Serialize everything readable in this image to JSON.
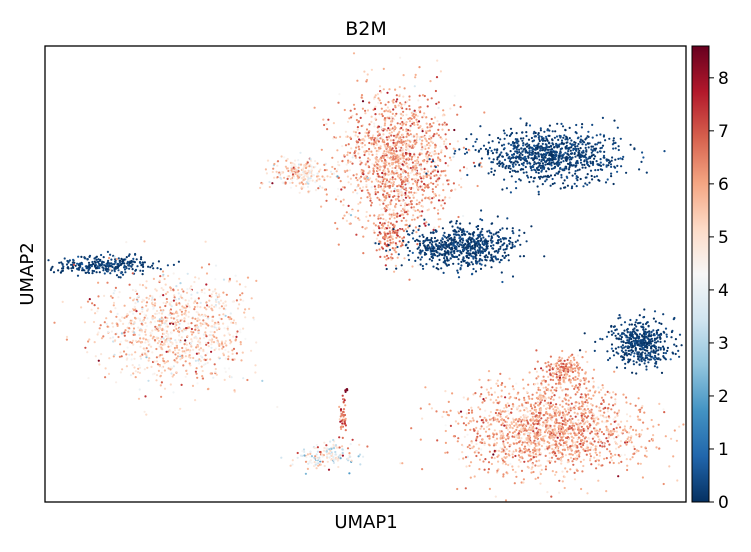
{
  "chart_data": {
    "type": "scatter",
    "title": "B2M",
    "xlabel": "UMAP1",
    "ylabel": "UMAP2",
    "xlim": [
      0,
      100
    ],
    "ylim": [
      0,
      100
    ],
    "colormap": "RdBu_r",
    "colormap_stops": [
      "#053061",
      "#2166ac",
      "#4393c3",
      "#92c5de",
      "#d1e5f0",
      "#f7f7f7",
      "#fddbc7",
      "#f4a582",
      "#d6604d",
      "#b2182b",
      "#67001f"
    ],
    "colorbar": {
      "min": 0,
      "max": 8.6,
      "ticks": [
        {
          "value": 0,
          "label": "0"
        },
        {
          "value": 1,
          "label": "1"
        },
        {
          "value": 2,
          "label": "2"
        },
        {
          "value": 3,
          "label": "3"
        },
        {
          "value": 4,
          "label": "4"
        },
        {
          "value": 5,
          "label": "5"
        },
        {
          "value": 6,
          "label": "6"
        },
        {
          "value": 7,
          "label": "7"
        },
        {
          "value": 8,
          "label": "8"
        }
      ]
    },
    "clusters": [
      {
        "id": "top-center",
        "center": [
          55,
          75
        ],
        "spread": [
          7.5,
          13
        ],
        "mean_value": 5.9,
        "value_sd": 0.8,
        "n": 1400
      },
      {
        "id": "top-center-arm",
        "center": [
          40,
          72
        ],
        "spread": [
          4,
          3
        ],
        "mean_value": 5.0,
        "value_sd": 0.9,
        "n": 220
      },
      {
        "id": "top-center-tail",
        "center": [
          54,
          58
        ],
        "spread": [
          2,
          5
        ],
        "mean_value": 6.4,
        "value_sd": 0.6,
        "n": 120
      },
      {
        "id": "right-band-upper",
        "center": [
          79,
          76
        ],
        "spread": [
          9,
          4.5
        ],
        "mean_value": 0.2,
        "value_sd": 0.2,
        "n": 900
      },
      {
        "id": "right-band-lower",
        "center": [
          65,
          56
        ],
        "spread": [
          7,
          4
        ],
        "mean_value": 0.2,
        "value_sd": 0.2,
        "n": 650
      },
      {
        "id": "left-upper-strip",
        "center": [
          9,
          52
        ],
        "spread": [
          7,
          1.6
        ],
        "mean_value": 0.2,
        "value_sd": 0.2,
        "n": 280
      },
      {
        "id": "left-main",
        "center": [
          20,
          38
        ],
        "spread": [
          10,
          10
        ],
        "mean_value": 5.2,
        "value_sd": 0.9,
        "n": 1000
      },
      {
        "id": "bottom-right",
        "center": [
          79,
          16
        ],
        "spread": [
          12,
          8
        ],
        "mean_value": 5.9,
        "value_sd": 0.7,
        "n": 1600
      },
      {
        "id": "bottom-right-bump",
        "center": [
          81,
          29
        ],
        "spread": [
          3,
          3
        ],
        "mean_value": 6.2,
        "value_sd": 0.6,
        "n": 200
      },
      {
        "id": "far-right",
        "center": [
          93,
          35
        ],
        "spread": [
          4,
          4
        ],
        "mean_value": 0.2,
        "value_sd": 0.2,
        "n": 450
      },
      {
        "id": "bottom-small",
        "center": [
          44,
          10
        ],
        "spread": [
          3.5,
          2.5
        ],
        "mean_value": 4.5,
        "value_sd": 1.2,
        "n": 160
      },
      {
        "id": "bottom-small-stalk",
        "center": [
          46.5,
          19
        ],
        "spread": [
          0.5,
          4
        ],
        "mean_value": 6.5,
        "value_sd": 0.8,
        "n": 45
      },
      {
        "id": "bottom-small-tip",
        "center": [
          47,
          24.5
        ],
        "spread": [
          0.3,
          0.4
        ],
        "mean_value": 8.4,
        "value_sd": 0.1,
        "n": 5
      }
    ]
  }
}
